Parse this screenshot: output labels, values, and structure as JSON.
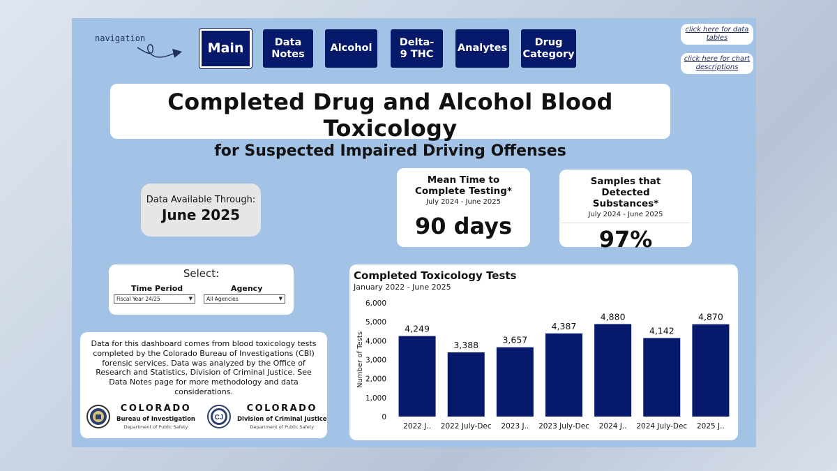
{
  "nav": {
    "hint": "navigation",
    "buttons": [
      {
        "label": "Main",
        "active": true
      },
      {
        "label": "Data Notes"
      },
      {
        "label": "Alcohol"
      },
      {
        "label": "Delta-9 THC"
      },
      {
        "label": "Analytes"
      },
      {
        "label": "Drug Category"
      }
    ]
  },
  "help_links": {
    "data_tables": "click here for data tables",
    "chart_descriptions": "click here for chart descriptions"
  },
  "title": {
    "main": "Completed Drug and Alcohol Blood Toxicology",
    "sub": "for Suspected Impaired Driving Offenses"
  },
  "availability": {
    "label": "Data Available Through:",
    "value": "June 2025"
  },
  "kpis": {
    "mean_time": {
      "title": "Mean Time to Complete Testing*",
      "period": "July 2024 - June 2025",
      "value": "90 days"
    },
    "detected": {
      "title": "Samples that Detected Substances*",
      "period": "July 2024 - June 2025",
      "value": "97%"
    }
  },
  "filters": {
    "title": "Select:",
    "time_period": {
      "label": "Time Period",
      "selected": "Fiscal Year 24/25"
    },
    "agency": {
      "label": "Agency",
      "selected": "All Agencies"
    }
  },
  "info": {
    "text": "Data for this dashboard comes from blood toxicology tests completed by the Colorado Bureau of Investigations (CBI) forensic services. Data was analyzed by the Office of Research and Statistics, Division of Criminal Justice. See Data Notes page for more methodology and data considerations.",
    "logo_cbi": {
      "name": "COLORADO",
      "unit": "Bureau of Investigation",
      "dept": "Department of Public Safety"
    },
    "logo_dcj": {
      "name": "COLORADO",
      "unit": "Division of Criminal Justice",
      "dept": "Department of Public Safety",
      "mark": "CJ"
    }
  },
  "colors": {
    "accent": "#07196b",
    "background": "#a2c3e6",
    "bar": "#07196b"
  },
  "chart_data": {
    "type": "bar",
    "title": "Completed Toxicology Tests",
    "subtitle": "January 2022 - June 2025",
    "ylabel": "Number of Tests",
    "xlabel": "",
    "ylim": [
      0,
      6000
    ],
    "yticks": [
      0,
      1000,
      2000,
      3000,
      4000,
      5000,
      6000
    ],
    "ytick_labels": [
      "0",
      "1,000",
      "2,000",
      "3,000",
      "4,000",
      "5,000",
      "6,000"
    ],
    "categories": [
      "2022 J..",
      "2022 July-Dec",
      "2023 J..",
      "2023 July-Dec",
      "2024 J..",
      "2024 July-Dec",
      "2025 J.."
    ],
    "values": [
      4249,
      3388,
      3657,
      4387,
      4880,
      4142,
      4870
    ],
    "value_labels": [
      "4,249",
      "3,388",
      "3,657",
      "4,387",
      "4,880",
      "4,142",
      "4,870"
    ],
    "grid": false,
    "legend": "none"
  }
}
